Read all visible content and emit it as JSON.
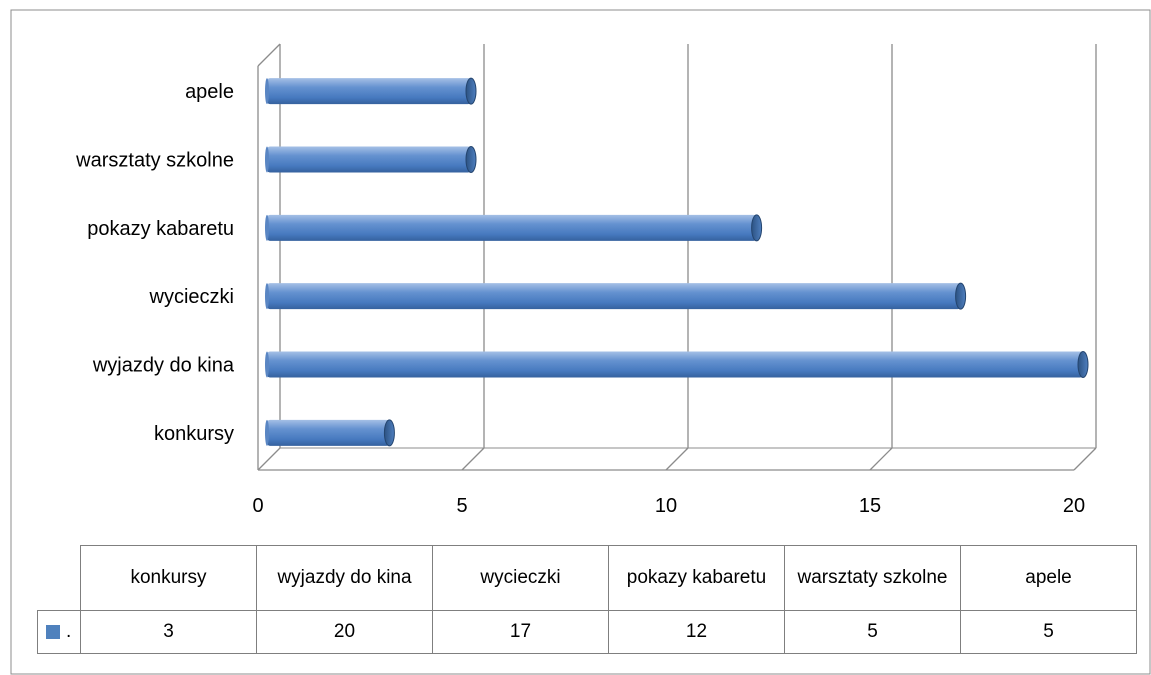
{
  "chart_data": {
    "type": "bar",
    "orientation": "horizontal",
    "categories": [
      "konkursy",
      "wyjazdy do kina",
      "wycieczki ",
      "pokazy kabaretu",
      "warsztaty szkolne",
      "apele"
    ],
    "series": [
      {
        "name": ".",
        "values": [
          3,
          20,
          17,
          12,
          5,
          5
        ],
        "color": "#4f81bd"
      }
    ],
    "xlim": [
      0,
      20
    ],
    "x_ticks": [
      0,
      5,
      10,
      15,
      20
    ],
    "grid": true,
    "legend": "data-table",
    "table": {
      "headers": [
        "konkursy",
        "wyjazdy do kina",
        "wycieczki",
        "pokazy kabaretu",
        "warsztaty szkolne",
        "apele"
      ],
      "values": [
        "3",
        "20",
        "17",
        "12",
        "5",
        "5"
      ]
    }
  },
  "colors": {
    "bar": "#4f81bd",
    "bar_dark": "#2c5282",
    "grid": "#8c8c8c"
  }
}
